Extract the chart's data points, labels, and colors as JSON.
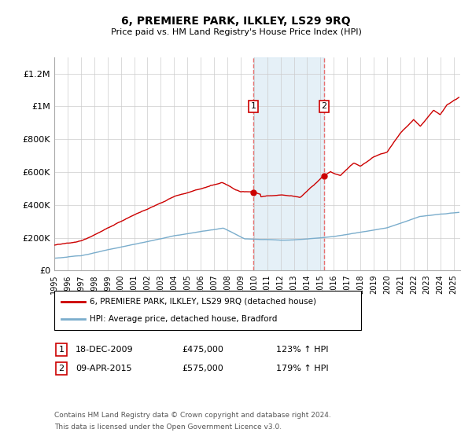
{
  "title": "6, PREMIERE PARK, ILKLEY, LS29 9RQ",
  "subtitle": "Price paid vs. HM Land Registry's House Price Index (HPI)",
  "ylim": [
    0,
    1300000
  ],
  "yticks": [
    0,
    200000,
    400000,
    600000,
    800000,
    1000000,
    1200000
  ],
  "ytick_labels": [
    "£0",
    "£200K",
    "£400K",
    "£600K",
    "£800K",
    "£1M",
    "£1.2M"
  ],
  "house_color": "#cc0000",
  "hpi_color": "#7aadcc",
  "vline_color": "#e87070",
  "vshade_color": "#daeaf5",
  "t1_year": 2009.958,
  "t2_year": 2015.274,
  "t1_price": 475000,
  "t2_price": 575000,
  "legend_house": "6, PREMIERE PARK, ILKLEY, LS29 9RQ (detached house)",
  "legend_hpi": "HPI: Average price, detached house, Bradford",
  "row1_num": "1",
  "row1_date": "18-DEC-2009",
  "row1_price": "£475,000",
  "row1_pct": "123% ↑ HPI",
  "row2_num": "2",
  "row2_date": "09-APR-2015",
  "row2_price": "£575,000",
  "row2_pct": "179% ↑ HPI",
  "footnote_line1": "Contains HM Land Registry data © Crown copyright and database right 2024.",
  "footnote_line2": "This data is licensed under the Open Government Licence v3.0.",
  "xstart": 1995.0,
  "xend": 2025.5
}
